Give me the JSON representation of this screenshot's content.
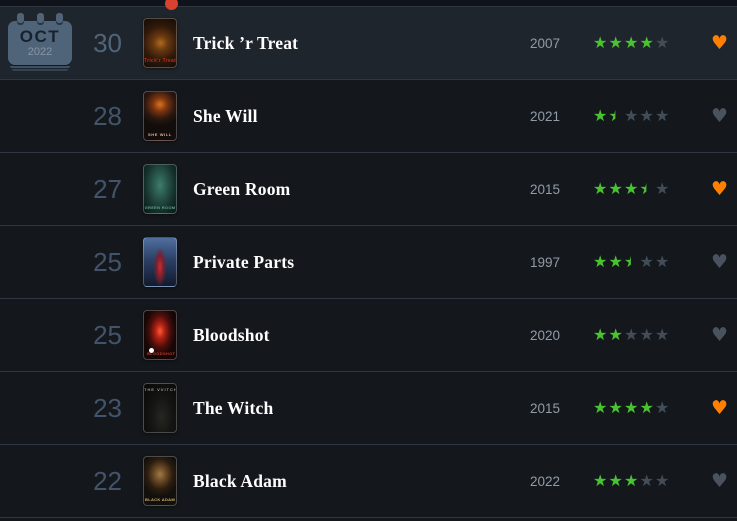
{
  "calendar": {
    "month": "OCT",
    "year": "2022"
  },
  "colors": {
    "background": "#14181d",
    "top_bar": "#10141a",
    "row_highlight": "#1f252c",
    "separator": "#2e3742",
    "star_filled": "#4ac331",
    "star_empty": "#434d58",
    "heart_liked": "#ff8000",
    "heart_unliked": "#49525e",
    "indicator_dot": "#d8432f",
    "title_text": "#ffffff",
    "year_text": "#919ba7",
    "day_text": "#43546a",
    "calendar_body": "#4f6479"
  },
  "diary": {
    "rows": [
      {
        "day": "30",
        "title": "Trick ’r Treat",
        "year": "2007",
        "rating": 4,
        "liked": true,
        "highlighted": true,
        "poster": "trick-r-treat",
        "poster_text": "Trick'r Treat"
      },
      {
        "day": "28",
        "title": "She Will",
        "year": "2021",
        "rating": 1.5,
        "liked": false,
        "highlighted": false,
        "poster": "she-will",
        "poster_text": "SHE WILL"
      },
      {
        "day": "27",
        "title": "Green Room",
        "year": "2015",
        "rating": 3.5,
        "liked": true,
        "highlighted": false,
        "poster": "green-room",
        "poster_text": "GREEN ROOM"
      },
      {
        "day": "25",
        "title": "Private Parts",
        "year": "1997",
        "rating": 2.5,
        "liked": false,
        "highlighted": false,
        "poster": "private-parts",
        "poster_text": ""
      },
      {
        "day": "25",
        "title": "Bloodshot",
        "year": "2020",
        "rating": 2,
        "liked": false,
        "highlighted": false,
        "poster": "bloodshot",
        "poster_text": "BLOODSHOT"
      },
      {
        "day": "23",
        "title": "The Witch",
        "year": "2015",
        "rating": 4,
        "liked": true,
        "highlighted": false,
        "poster": "the-witch",
        "poster_text": "THE VVITCH"
      },
      {
        "day": "22",
        "title": "Black Adam",
        "year": "2022",
        "rating": 3,
        "liked": false,
        "highlighted": false,
        "poster": "black-adam",
        "poster_text": "BLACK ADAM"
      }
    ]
  }
}
